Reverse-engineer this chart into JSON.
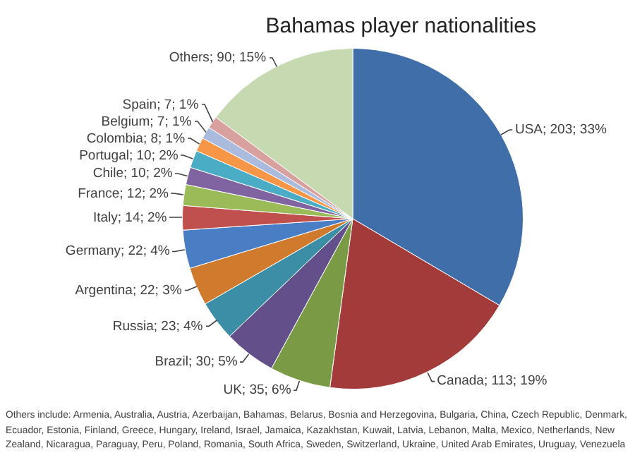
{
  "chart_data": {
    "type": "pie",
    "title": "Bahamas player nationalities",
    "categories": [
      "USA",
      "Canada",
      "UK",
      "Brazil",
      "Russia",
      "Argentina",
      "Germany",
      "Italy",
      "France",
      "Chile",
      "Portugal",
      "Colombia",
      "Belgium",
      "Spain",
      "Others"
    ],
    "values": [
      203,
      113,
      35,
      30,
      23,
      22,
      22,
      14,
      12,
      10,
      10,
      8,
      7,
      7,
      90
    ],
    "colors": [
      "#3f6ea8",
      "#a33b3b",
      "#7a9a45",
      "#63508a",
      "#3b8ea5",
      "#d07a2e",
      "#4a7ec4",
      "#c0504d",
      "#9bbb59",
      "#8064a2",
      "#4bacc6",
      "#f79646",
      "#aabbdd",
      "#d9a0a0",
      "#c6d9b0"
    ],
    "value_labels": [
      "; 203; 33%",
      "; 113; 19%",
      "; 35; 6%",
      "; 30; 5%",
      "; 23; 4%",
      "; 22; 3%",
      "; 22; 4%",
      "; 14; 2%",
      "; 12; 2%",
      "; 10; 2%",
      "; 10; 2%",
      "; 8; 1%",
      "; 7; 1%",
      "; 7; 1%",
      "; 90; 15%"
    ],
    "legend": false,
    "annotations": [
      "Others include: Armenia, Australia, Austria, Azerbaijan, Bahamas, Belarus, Bosnia and Herzegovina, Bulgaria, China, Czech Republic, Denmark, Ecuador, Estonia, Finland, Greece, Hungary, Ireland, Israel, Jamaica, Kazakhstan, Kuwait, Latvia, Lebanon, Malta, Mexico, Netherlands, New Zealand, Nicaragua, Paraguay, Peru, Poland, Romania, South Africa, Sweden, Switzerland, Ukraine, United Arab Emirates, Uruguay, Venezuela"
    ]
  }
}
